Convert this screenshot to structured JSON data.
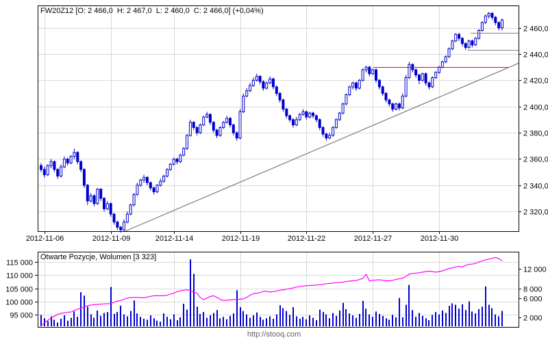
{
  "header": {
    "title": "FW20Z12 [O: 2 466,0  H: 2 467,0  L: 2 460,0  C: 2 466,0] (+0,04%)"
  },
  "footer": {
    "url": "http://stooq.com"
  },
  "colors": {
    "background": "#FFFFFF",
    "candle_blue": "#0000CC",
    "volume_bar_blue": "#0000CC",
    "open_positions_magenta": "#FF00FF",
    "resistance_red": "#FF0000",
    "level_gray": "#808080",
    "trendline_gray": "#787878",
    "grid_gray": "#D9D9D9",
    "border_black": "#000000",
    "text_black": "#000000",
    "footer_gray": "#606060"
  },
  "chart_data": [
    {
      "type": "candlestick",
      "symbol": "FW20Z12",
      "last_bar": {
        "open": "2 466,0",
        "high": "2 467,0",
        "low": "2 460,0",
        "close": "2 466,0",
        "change": "+0,04%"
      },
      "ylim": [
        2305,
        2477
      ],
      "yticks": [
        {
          "value": 2460,
          "label": "2 460,0"
        },
        {
          "value": 2440,
          "label": "2 440,0"
        },
        {
          "value": 2420,
          "label": "2 420,0"
        },
        {
          "value": 2400,
          "label": "2 400,0"
        },
        {
          "value": 2380,
          "label": "2 380,0"
        },
        {
          "value": 2360,
          "label": "2 360,0"
        },
        {
          "value": 2340,
          "label": "2 340,0"
        },
        {
          "value": 2320,
          "label": "2 320,0"
        }
      ],
      "xticks": [
        {
          "i": 1,
          "label": "2012-11-06"
        },
        {
          "i": 21,
          "label": "2012-11-09"
        },
        {
          "i": 40,
          "label": "2012-11-14"
        },
        {
          "i": 60,
          "label": "2012-11-19"
        },
        {
          "i": 80,
          "label": "2012-11-22"
        },
        {
          "i": 100,
          "label": "2012-11-27"
        },
        {
          "i": 120,
          "label": "2012-11-30"
        }
      ],
      "trendline": {
        "x1_frac": 0.182,
        "p1": 2305,
        "x2_frac": 1.0,
        "p2": 2433
      },
      "levels": [
        {
          "value": 2430,
          "x1_frac": 0.698,
          "x2_frac": 0.977,
          "color_key": "resistance_red"
        },
        {
          "value": 2443,
          "x1_frac": 0.894,
          "x2_frac": 1.0,
          "color_key": "level_gray"
        },
        {
          "value": 2456,
          "x1_frac": 0.9,
          "x2_frac": 1.0,
          "color_key": "level_gray"
        }
      ],
      "candles": [
        [
          2355,
          2357,
          2350,
          2352
        ],
        [
          2352,
          2354,
          2346,
          2348
        ],
        [
          2348,
          2356,
          2347,
          2355
        ],
        [
          2355,
          2360,
          2353,
          2358
        ],
        [
          2358,
          2359,
          2350,
          2352
        ],
        [
          2352,
          2353,
          2345,
          2347
        ],
        [
          2347,
          2356,
          2346,
          2354
        ],
        [
          2354,
          2362,
          2353,
          2360
        ],
        [
          2360,
          2361,
          2355,
          2357
        ],
        [
          2357,
          2363,
          2356,
          2362
        ],
        [
          2362,
          2368,
          2360,
          2365
        ],
        [
          2365,
          2366,
          2356,
          2358
        ],
        [
          2358,
          2359,
          2350,
          2352
        ],
        [
          2352,
          2353,
          2338,
          2340
        ],
        [
          2340,
          2341,
          2325,
          2328
        ],
        [
          2328,
          2334,
          2327,
          2332
        ],
        [
          2332,
          2333,
          2324,
          2326
        ],
        [
          2326,
          2338,
          2325,
          2337
        ],
        [
          2337,
          2338,
          2328,
          2330
        ],
        [
          2330,
          2331,
          2320,
          2322
        ],
        [
          2322,
          2328,
          2321,
          2326
        ],
        [
          2326,
          2327,
          2316,
          2318
        ],
        [
          2318,
          2319,
          2310,
          2312
        ],
        [
          2312,
          2313,
          2306,
          2308
        ],
        [
          2308,
          2309,
          2304,
          2306
        ],
        [
          2306,
          2314,
          2305,
          2312
        ],
        [
          2312,
          2320,
          2311,
          2318
        ],
        [
          2318,
          2326,
          2317,
          2325
        ],
        [
          2325,
          2334,
          2324,
          2333
        ],
        [
          2333,
          2342,
          2332,
          2340
        ],
        [
          2340,
          2345,
          2339,
          2344
        ],
        [
          2344,
          2348,
          2342,
          2346
        ],
        [
          2346,
          2347,
          2340,
          2342
        ],
        [
          2342,
          2343,
          2336,
          2338
        ],
        [
          2338,
          2339,
          2333,
          2335
        ],
        [
          2335,
          2341,
          2334,
          2340
        ],
        [
          2340,
          2345,
          2339,
          2343
        ],
        [
          2343,
          2348,
          2342,
          2347
        ],
        [
          2347,
          2353,
          2346,
          2352
        ],
        [
          2352,
          2357,
          2351,
          2356
        ],
        [
          2356,
          2361,
          2355,
          2360
        ],
        [
          2360,
          2361,
          2356,
          2358
        ],
        [
          2358,
          2364,
          2357,
          2363
        ],
        [
          2363,
          2369,
          2362,
          2368
        ],
        [
          2368,
          2379,
          2367,
          2378
        ],
        [
          2378,
          2390,
          2377,
          2388
        ],
        [
          2388,
          2389,
          2382,
          2384
        ],
        [
          2384,
          2385,
          2378,
          2380
        ],
        [
          2380,
          2387,
          2379,
          2386
        ],
        [
          2386,
          2393,
          2385,
          2392
        ],
        [
          2392,
          2396,
          2391,
          2394
        ],
        [
          2394,
          2395,
          2386,
          2388
        ],
        [
          2388,
          2389,
          2380,
          2382
        ],
        [
          2382,
          2383,
          2376,
          2378
        ],
        [
          2378,
          2385,
          2377,
          2384
        ],
        [
          2384,
          2389,
          2383,
          2388
        ],
        [
          2388,
          2393,
          2387,
          2391
        ],
        [
          2391,
          2392,
          2384,
          2386
        ],
        [
          2386,
          2387,
          2378,
          2380
        ],
        [
          2380,
          2381,
          2374,
          2376
        ],
        [
          2376,
          2398,
          2375,
          2396
        ],
        [
          2396,
          2410,
          2395,
          2408
        ],
        [
          2408,
          2414,
          2407,
          2412
        ],
        [
          2412,
          2418,
          2411,
          2416
        ],
        [
          2416,
          2422,
          2415,
          2420
        ],
        [
          2420,
          2425,
          2419,
          2423
        ],
        [
          2423,
          2424,
          2417,
          2419
        ],
        [
          2419,
          2420,
          2412,
          2414
        ],
        [
          2414,
          2419,
          2413,
          2418
        ],
        [
          2418,
          2423,
          2417,
          2421
        ],
        [
          2421,
          2422,
          2413,
          2415
        ],
        [
          2415,
          2416,
          2408,
          2410
        ],
        [
          2410,
          2411,
          2403,
          2405
        ],
        [
          2405,
          2406,
          2396,
          2398
        ],
        [
          2398,
          2399,
          2391,
          2393
        ],
        [
          2393,
          2394,
          2388,
          2390
        ],
        [
          2390,
          2391,
          2384,
          2386
        ],
        [
          2386,
          2392,
          2385,
          2390
        ],
        [
          2390,
          2395,
          2389,
          2394
        ],
        [
          2394,
          2398,
          2393,
          2396
        ],
        [
          2396,
          2397,
          2390,
          2392
        ],
        [
          2392,
          2396,
          2391,
          2395
        ],
        [
          2395,
          2396,
          2391,
          2393
        ],
        [
          2393,
          2394,
          2388,
          2390
        ],
        [
          2390,
          2391,
          2382,
          2384
        ],
        [
          2384,
          2385,
          2377,
          2379
        ],
        [
          2379,
          2380,
          2374,
          2376
        ],
        [
          2376,
          2380,
          2375,
          2378
        ],
        [
          2378,
          2385,
          2377,
          2384
        ],
        [
          2384,
          2391,
          2383,
          2390
        ],
        [
          2390,
          2396,
          2389,
          2395
        ],
        [
          2395,
          2403,
          2394,
          2402
        ],
        [
          2402,
          2410,
          2401,
          2409
        ],
        [
          2409,
          2416,
          2408,
          2415
        ],
        [
          2415,
          2419,
          2413,
          2418
        ],
        [
          2418,
          2419,
          2412,
          2414
        ],
        [
          2414,
          2421,
          2413,
          2420
        ],
        [
          2420,
          2429,
          2419,
          2428
        ],
        [
          2428,
          2431,
          2426,
          2430
        ],
        [
          2430,
          2431,
          2423,
          2425
        ],
        [
          2425,
          2429,
          2424,
          2428
        ],
        [
          2428,
          2429,
          2418,
          2420
        ],
        [
          2420,
          2421,
          2413,
          2415
        ],
        [
          2415,
          2416,
          2408,
          2410
        ],
        [
          2410,
          2411,
          2403,
          2405
        ],
        [
          2405,
          2406,
          2400,
          2402
        ],
        [
          2402,
          2403,
          2396,
          2398
        ],
        [
          2398,
          2403,
          2397,
          2402
        ],
        [
          2402,
          2403,
          2397,
          2399
        ],
        [
          2399,
          2410,
          2398,
          2408
        ],
        [
          2408,
          2424,
          2407,
          2422
        ],
        [
          2422,
          2434,
          2421,
          2432
        ],
        [
          2432,
          2433,
          2426,
          2428
        ],
        [
          2428,
          2429,
          2422,
          2424
        ],
        [
          2424,
          2425,
          2417,
          2420
        ],
        [
          2420,
          2426,
          2419,
          2425
        ],
        [
          2425,
          2426,
          2416,
          2418
        ],
        [
          2418,
          2419,
          2413,
          2415
        ],
        [
          2415,
          2423,
          2414,
          2422
        ],
        [
          2422,
          2427,
          2421,
          2426
        ],
        [
          2426,
          2431,
          2425,
          2430
        ],
        [
          2430,
          2435,
          2429,
          2434
        ],
        [
          2434,
          2439,
          2433,
          2438
        ],
        [
          2438,
          2445,
          2437,
          2444
        ],
        [
          2444,
          2451,
          2443,
          2450
        ],
        [
          2450,
          2456,
          2449,
          2455
        ],
        [
          2455,
          2456,
          2450,
          2452
        ],
        [
          2452,
          2453,
          2446,
          2448
        ],
        [
          2448,
          2449,
          2443,
          2445
        ],
        [
          2445,
          2451,
          2444,
          2450
        ],
        [
          2450,
          2451,
          2445,
          2447
        ],
        [
          2447,
          2453,
          2446,
          2452
        ],
        [
          2452,
          2459,
          2451,
          2458
        ],
        [
          2458,
          2465,
          2457,
          2464
        ],
        [
          2464,
          2470,
          2463,
          2469
        ],
        [
          2469,
          2472,
          2467,
          2471
        ],
        [
          2471,
          2472,
          2466,
          2468
        ],
        [
          2468,
          2469,
          2462,
          2464
        ],
        [
          2464,
          2465,
          2458,
          2460
        ],
        [
          2460,
          2467,
          2458,
          2466
        ]
      ]
    },
    {
      "type": "bar+line",
      "title": "Otwarte Pozycje, Wolumen [3 323]",
      "last_volume": "3 323",
      "left_ylim": [
        90300,
        119000
      ],
      "left_yticks": [
        {
          "value": 115000,
          "label": "115 000"
        },
        {
          "value": 110000,
          "label": "110 000"
        },
        {
          "value": 105000,
          "label": "105 000"
        },
        {
          "value": 100000,
          "label": "100 000"
        },
        {
          "value": 95000,
          "label": "95 000"
        }
      ],
      "right_ylim": [
        0,
        15600
      ],
      "right_yticks": [
        {
          "value": 12000,
          "label": "12 000"
        },
        {
          "value": 8000,
          "label": "8 000"
        },
        {
          "value": 6000,
          "label": "6 000"
        },
        {
          "value": 2000,
          "label": "2 000"
        }
      ],
      "volume": [
        2500,
        1800,
        1200,
        2200,
        1500,
        900,
        1700,
        2400,
        1300,
        1900,
        3200,
        2100,
        7200,
        6500,
        4200,
        2600,
        1900,
        3400,
        2300,
        2900,
        3100,
        8300,
        2700,
        3100,
        4400,
        2600,
        2200,
        3300,
        5500,
        2800,
        2100,
        1700,
        1500,
        2400,
        1800,
        1300,
        1100,
        2800,
        2100,
        1600,
        2600,
        1400,
        2000,
        4800,
        3600,
        14000,
        11000,
        4200,
        2700,
        3100,
        1900,
        2400,
        2900,
        3500,
        1800,
        2100,
        1600,
        2300,
        2800,
        7600,
        4100,
        3300,
        2600,
        1900,
        2400,
        3000,
        2100,
        1500,
        1800,
        2200,
        1700,
        2600,
        4500,
        3900,
        3300,
        2500,
        4100,
        2200,
        1700,
        2100,
        1600,
        2400,
        1900,
        1400,
        3600,
        3100,
        2600,
        1800,
        2900,
        2300,
        3400,
        5000,
        3700,
        2800,
        2400,
        1900,
        2700,
        5400,
        3800,
        2600,
        2100,
        3200,
        2700,
        2300,
        1800,
        1500,
        2500,
        2000,
        6000,
        2000,
        4600,
        8700,
        3500,
        2100,
        2900,
        2300,
        1800,
        1400,
        2500,
        3100,
        2600,
        3400,
        2900,
        4400,
        4900,
        4600,
        3800,
        4700,
        3500,
        5300,
        3200,
        2800,
        3700,
        4200,
        8400,
        4600,
        3900,
        2600,
        2200,
        3323
      ],
      "open_positions": [
        90800,
        91800,
        92800,
        93700,
        94400,
        95100,
        95500,
        95700,
        95900,
        96000,
        96600,
        97100,
        97500,
        97900,
        98400,
        98700,
        98800,
        98900,
        99000,
        99100,
        99150,
        99200,
        99750,
        100200,
        100400,
        100900,
        101300,
        101500,
        101550,
        101600,
        101500,
        101400,
        101700,
        102000,
        102200,
        102200,
        102200,
        102200,
        102400,
        102800,
        103200,
        103700,
        104100,
        104300,
        104500,
        104100,
        103600,
        103200,
        101500,
        100700,
        101300,
        101900,
        102200,
        101600,
        100800,
        100400,
        100500,
        100600,
        100700,
        100800,
        100900,
        101000,
        101600,
        102400,
        103000,
        103200,
        103400,
        103900,
        103900,
        103600,
        103800,
        104000,
        104300,
        104500,
        104700,
        104900,
        105200,
        105500,
        105700,
        105900,
        106000,
        106100,
        106200,
        106300,
        106400,
        106600,
        106800,
        106900,
        107000,
        107200,
        107300,
        107400,
        107600,
        107800,
        107900,
        108000,
        108400,
        108800,
        110400,
        107900,
        108100,
        108200,
        108300,
        108100,
        107900,
        107900,
        108100,
        108400,
        108700,
        108900,
        109600,
        110500,
        110700,
        110800,
        111000,
        111200,
        111400,
        111600,
        111400,
        111200,
        111400,
        111700,
        112100,
        112600,
        112900,
        113200,
        113400,
        113200,
        113800,
        114200,
        114250,
        114600,
        115100,
        115500,
        115900,
        116200,
        116500,
        116800,
        116400,
        115500
      ]
    }
  ]
}
